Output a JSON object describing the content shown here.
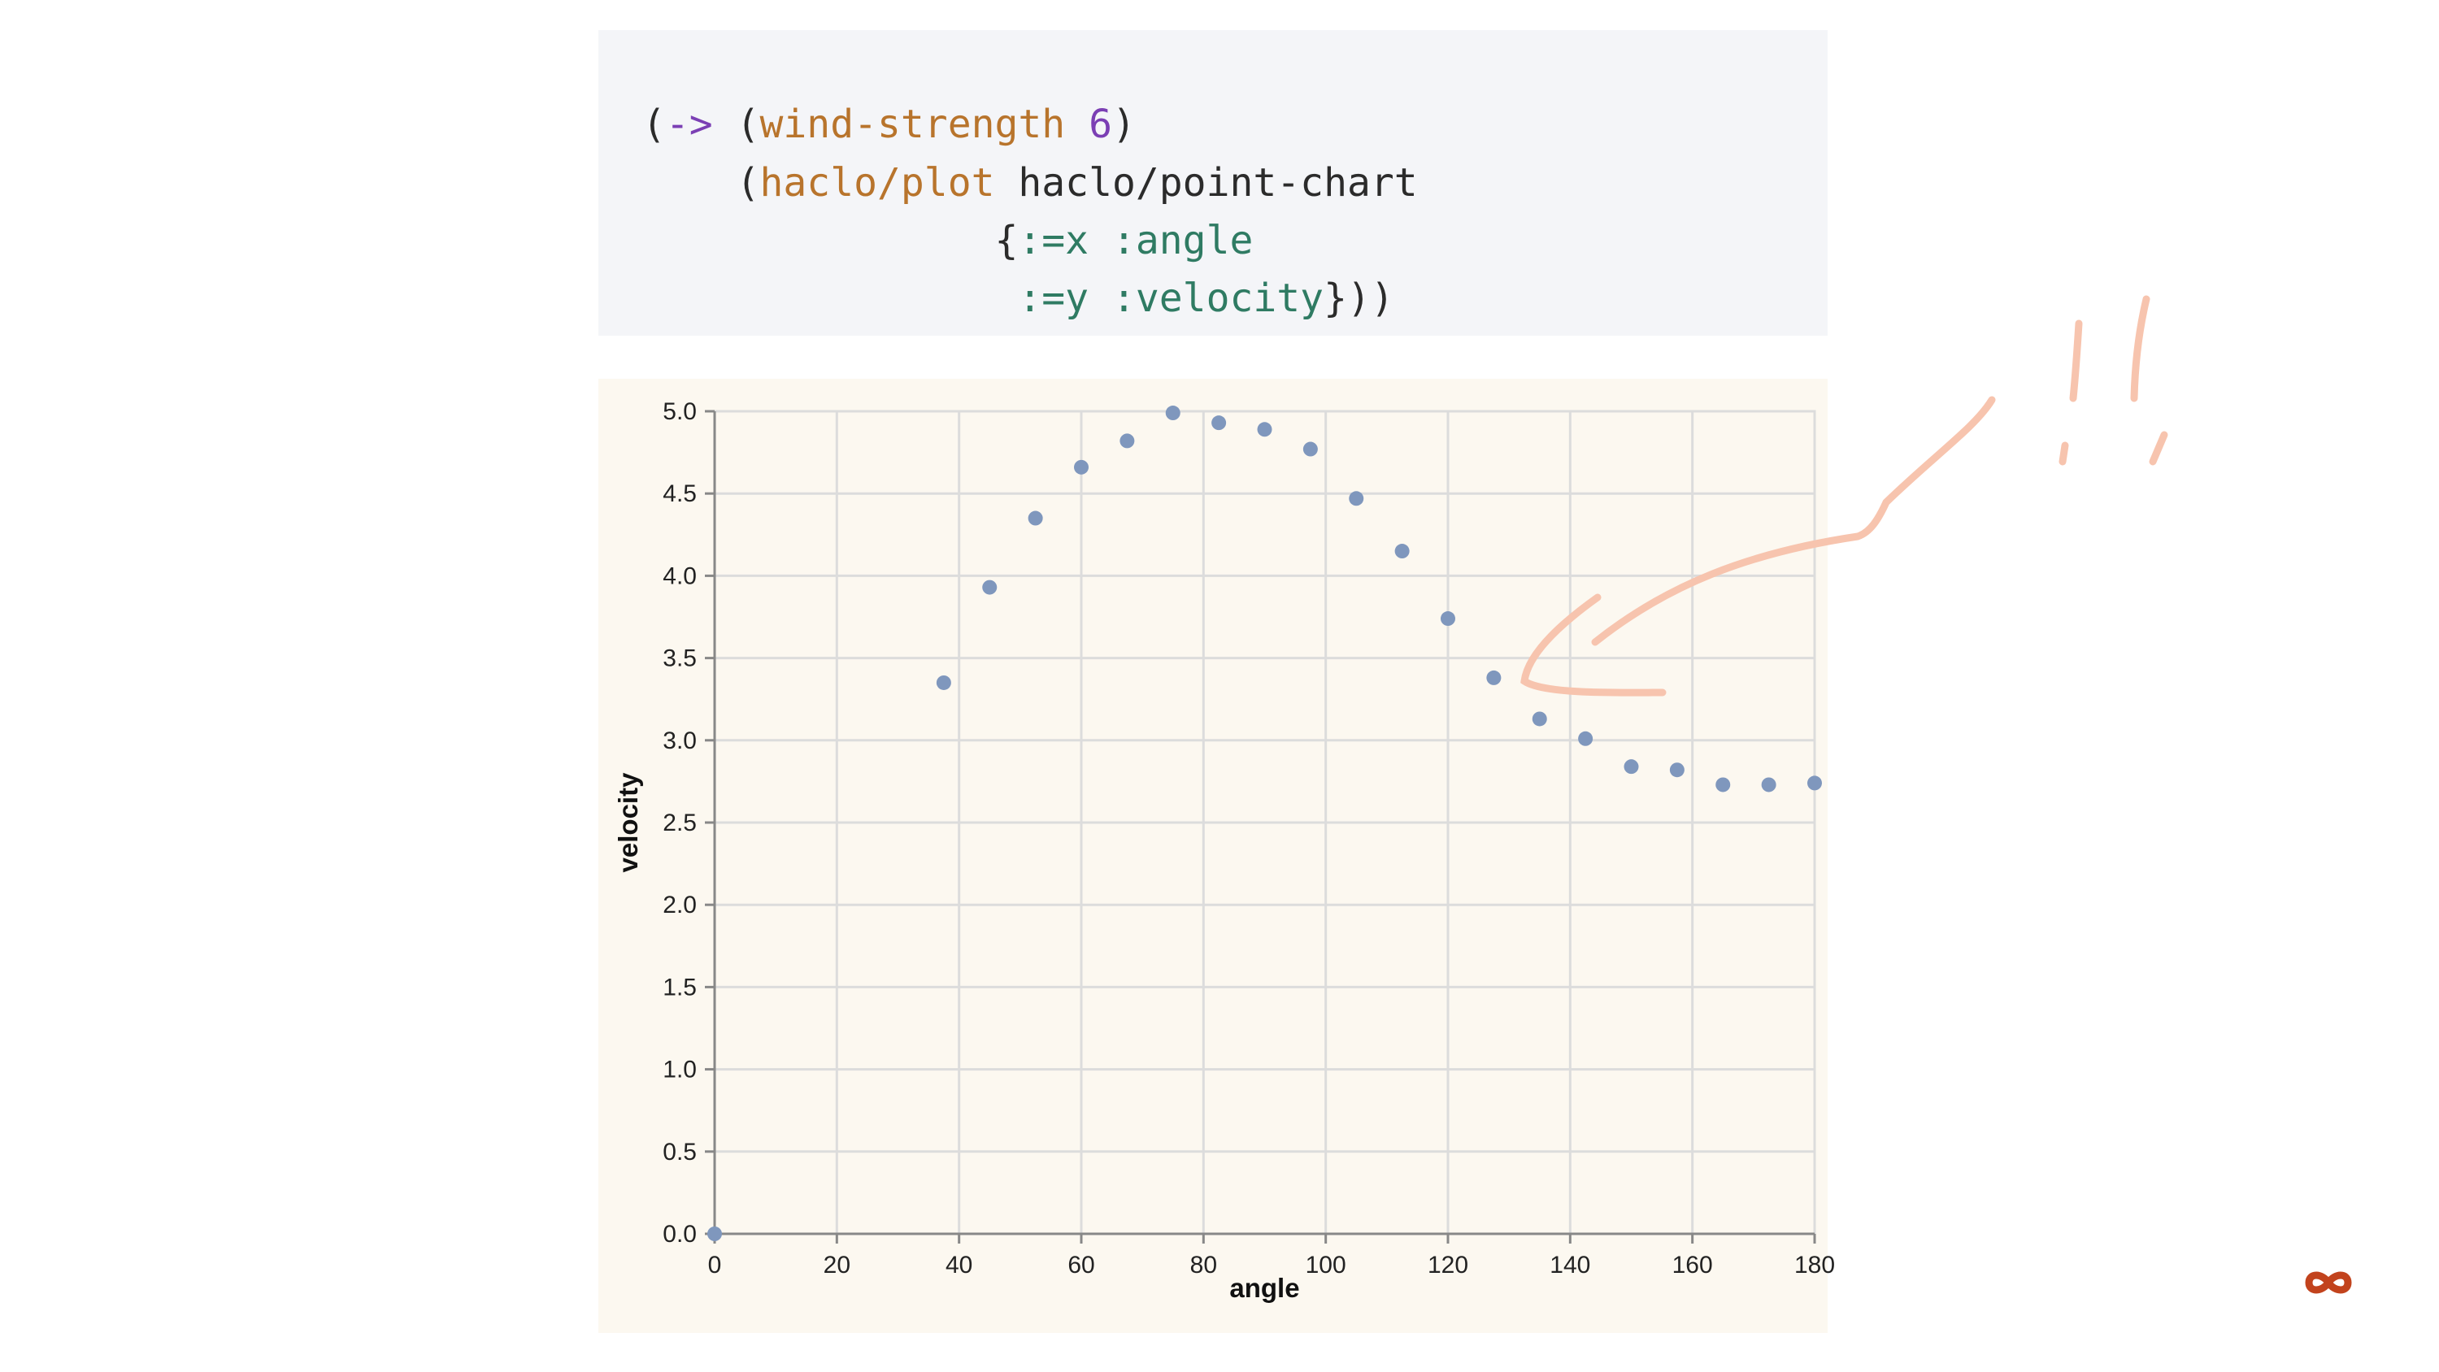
{
  "code": {
    "lines": [
      [
        {
          "t": "(",
          "c": "plain"
        },
        {
          "t": "->",
          "c": "arrow"
        },
        {
          "t": " (",
          "c": "plain"
        },
        {
          "t": "wind-strength",
          "c": "fn"
        },
        {
          "t": " ",
          "c": "plain"
        },
        {
          "t": "6",
          "c": "num"
        },
        {
          "t": ")",
          "c": "plain"
        }
      ],
      [
        {
          "t": "    (",
          "c": "plain"
        },
        {
          "t": "haclo/plot",
          "c": "fn"
        },
        {
          "t": " haclo/point-chart",
          "c": "plain"
        }
      ],
      [
        {
          "t": "               {",
          "c": "plain"
        },
        {
          "t": ":=x :angle",
          "c": "kw"
        }
      ],
      [
        {
          "t": "                ",
          "c": "plain"
        },
        {
          "t": ":=y :velocity",
          "c": "kw"
        },
        {
          "t": "}))",
          "c": "plain"
        }
      ]
    ]
  },
  "chart_data": {
    "type": "scatter",
    "title": "",
    "xlabel": "angle",
    "ylabel": "velocity",
    "xlim": [
      0,
      180
    ],
    "ylim": [
      0,
      5
    ],
    "xticks": [
      0,
      20,
      40,
      60,
      80,
      100,
      120,
      140,
      160,
      180
    ],
    "yticks": [
      "0.0",
      "0.5",
      "1.0",
      "1.5",
      "2.0",
      "2.5",
      "3.0",
      "3.5",
      "4.0",
      "4.5",
      "5.0"
    ],
    "grid": true,
    "point_color": "#7f97bd",
    "x": [
      0,
      37.5,
      45,
      52.5,
      60,
      67.5,
      75,
      82.5,
      90,
      97.5,
      105,
      112.5,
      120,
      127.5,
      135,
      142.5,
      150,
      157.5,
      165,
      172.5,
      180
    ],
    "y": [
      0,
      3.35,
      3.93,
      4.35,
      4.66,
      4.82,
      4.99,
      4.93,
      4.89,
      4.77,
      4.47,
      4.15,
      3.74,
      3.38,
      3.13,
      3.01,
      2.84,
      2.82,
      2.73,
      2.73,
      2.74
    ]
  },
  "annotation": {
    "color": "#f7c4ae"
  },
  "logo": {
    "name": "infinity-icon",
    "color": "#c2431d"
  }
}
